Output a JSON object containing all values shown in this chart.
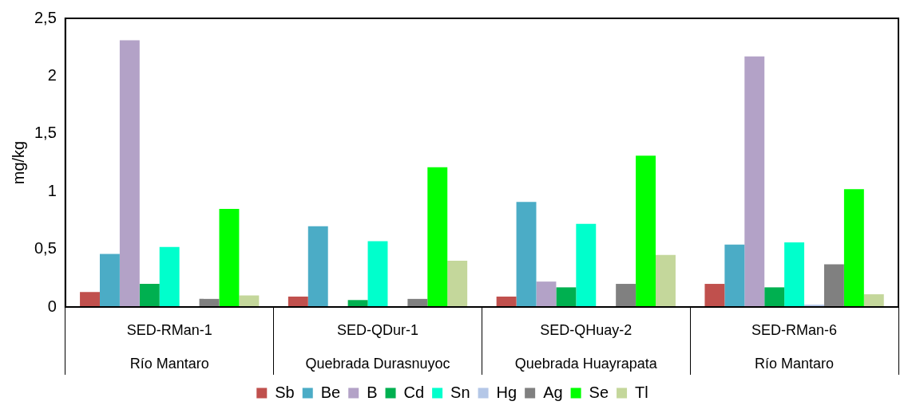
{
  "chart_data": {
    "type": "bar",
    "ylabel": "mg/kg",
    "categories": [
      "SED-RMan-1",
      "SED-QDur-1",
      "SED-QHuay-2",
      "SED-RMan-6"
    ],
    "annotations": [
      "Río Mantaro",
      "Quebrada Durasnuyoc",
      "Quebrada Huayrapata",
      "Río Mantaro"
    ],
    "series": [
      {
        "name": "Sb",
        "color": "#c0504d",
        "values": [
          0.13,
          0.09,
          0.09,
          0.2
        ]
      },
      {
        "name": "Be",
        "color": "#4bacc6",
        "values": [
          0.46,
          0.7,
          0.91,
          0.54
        ]
      },
      {
        "name": "B",
        "color": "#b3a2c7",
        "values": [
          2.31,
          0,
          0.22,
          2.17
        ]
      },
      {
        "name": "Cd",
        "color": "#00b050",
        "values": [
          0.2,
          0.06,
          0.17,
          0.17
        ]
      },
      {
        "name": "Sn",
        "color": "#00ffcc",
        "values": [
          0.52,
          0.57,
          0.72,
          0.56
        ]
      },
      {
        "name": "Hg",
        "color": "#b4c7e7",
        "values": [
          0,
          0,
          0,
          0.02
        ]
      },
      {
        "name": "Ag",
        "color": "#808080",
        "values": [
          0.07,
          0.07,
          0.2,
          0.37
        ]
      },
      {
        "name": "Se",
        "color": "#00ff00",
        "values": [
          0.85,
          1.21,
          1.31,
          1.02
        ]
      },
      {
        "name": "Tl",
        "color": "#c4d79b",
        "values": [
          0.1,
          0.4,
          0.45,
          0.11
        ]
      }
    ],
    "ylim": [
      0,
      2.5
    ],
    "yticks": [
      0,
      {
        "value": 0.5,
        "label": "0,5"
      },
      1,
      {
        "value": 1.5,
        "label": "1,5"
      },
      2,
      {
        "value": 2.5,
        "label": "2,5"
      }
    ],
    "grid": false,
    "legend": "bottom"
  }
}
